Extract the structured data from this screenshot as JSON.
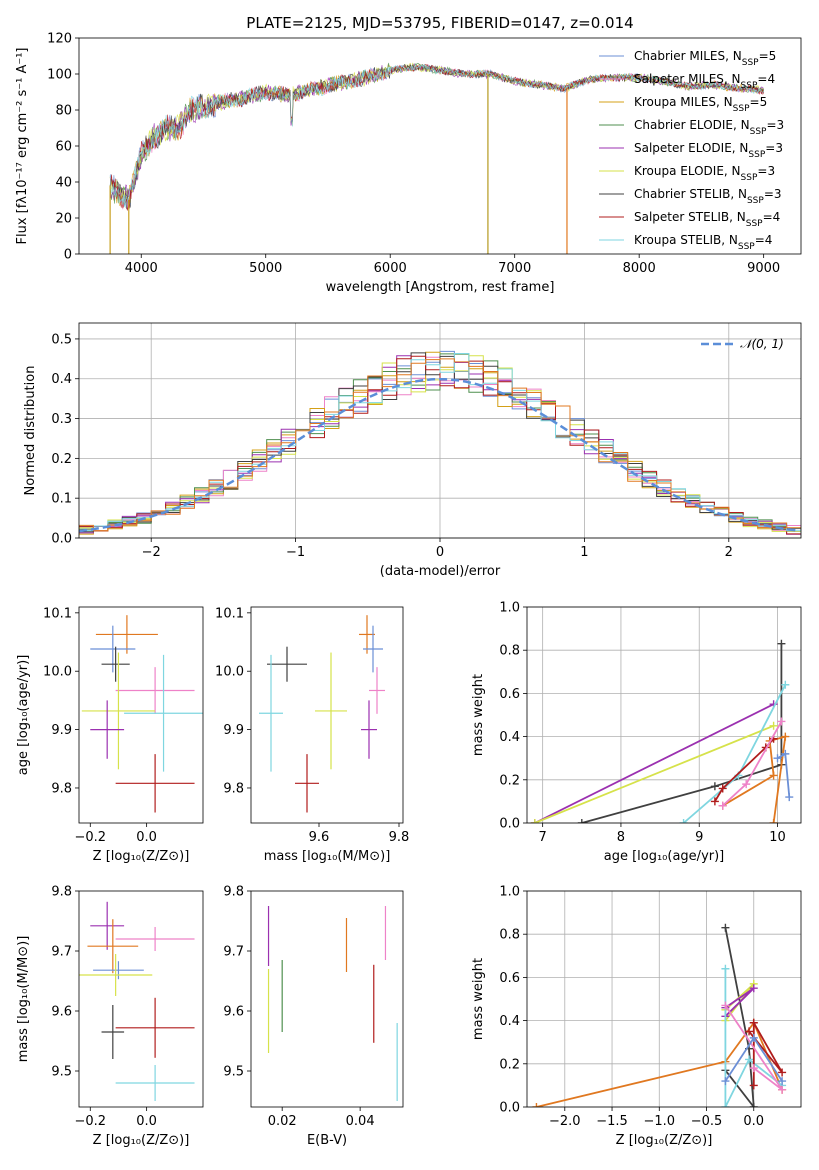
{
  "title": "PLATE=2125, MJD=53795, FIBERID=0147, z=0.014",
  "colors": {
    "Chabrier MILES": "#6b8fd6",
    "Salpeter MILES": "#ee82c8",
    "Kroupa MILES": "#d4a017",
    "Chabrier ELODIE": "#4f8f4f",
    "Salpeter ELODIE": "#9b30b0",
    "Kroupa ELODIE": "#d6e24a",
    "Chabrier STELIB": "#404040",
    "Salpeter STELIB": "#b01c1c",
    "Kroupa STELIB": "#7fd6e0",
    "orange": "#e07820",
    "normal": "#5b8ed8"
  },
  "chart_data": [
    {
      "type": "line",
      "xlabel": "wavelength [Angstrom, rest frame]",
      "ylabel": "Flux [fλ10⁻¹⁷ erg cm⁻² s⁻¹ A⁻¹]",
      "xlim": [
        3500,
        9300
      ],
      "ylim": [
        0,
        120
      ],
      "xticks": [
        4000,
        5000,
        6000,
        7000,
        8000,
        9000
      ],
      "yticks": [
        0,
        20,
        40,
        60,
        80,
        100,
        120
      ],
      "legend_position": "top-right",
      "legend": [
        {
          "label": "Chabrier MILES, N",
          "sub": "SSP",
          "tail": "=5"
        },
        {
          "label": "Salpeter MILES, N",
          "sub": "SSP",
          "tail": "=4"
        },
        {
          "label": "Kroupa MILES, N",
          "sub": "SSP",
          "tail": "=5"
        },
        {
          "label": "Chabrier ELODIE, N",
          "sub": "SSP",
          "tail": "=3"
        },
        {
          "label": "Salpeter ELODIE, N",
          "sub": "SSP",
          "tail": "=3"
        },
        {
          "label": "Kroupa ELODIE, N",
          "sub": "SSP",
          "tail": "=3"
        },
        {
          "label": "Chabrier STELIB, N",
          "sub": "SSP",
          "tail": "=3"
        },
        {
          "label": "Salpeter STELIB, N",
          "sub": "SSP",
          "tail": "=4"
        },
        {
          "label": "Kroupa STELIB, N",
          "sub": "SSP",
          "tail": "=4"
        }
      ],
      "spectrum_anchors": {
        "x": [
          3750,
          3800,
          3900,
          4000,
          4100,
          4200,
          4300,
          4400,
          4500,
          4600,
          4800,
          5000,
          5200,
          5400,
          5600,
          5800,
          5900,
          6000,
          6200,
          6400,
          6600,
          6800,
          7000,
          7200,
          7400,
          7600,
          7800,
          8000,
          8200,
          8400,
          8600,
          8800,
          9000
        ],
        "y": [
          38,
          35,
          30,
          55,
          65,
          70,
          70,
          80,
          82,
          84,
          86,
          90,
          88,
          92,
          95,
          98,
          100,
          102,
          104,
          102,
          100,
          100,
          96,
          94,
          92,
          97,
          98,
          98,
          96,
          93,
          94,
          92,
          91
        ]
      },
      "dips": [
        {
          "x": 3750,
          "to": 0
        },
        {
          "x": 3900,
          "to": 0
        },
        {
          "x": 6785,
          "to": 0
        },
        {
          "x": 7420,
          "to": 0
        }
      ]
    },
    {
      "type": "line",
      "xlabel": "(data-model)/error",
      "ylabel": "Normed distribution",
      "xlim": [
        -2.5,
        2.5
      ],
      "ylim": [
        0,
        0.54
      ],
      "xticks": [
        -2,
        -1,
        0,
        1,
        2
      ],
      "yticks": [
        0.0,
        0.1,
        0.2,
        0.3,
        0.4,
        0.5
      ],
      "grid": true,
      "legend_position": "top-right",
      "legend_label": "𝒩(0, 1)",
      "bin_width": 0.1,
      "series": [
        {
          "name": "Chabrier MILES",
          "seed": 1
        },
        {
          "name": "Salpeter MILES",
          "seed": 2
        },
        {
          "name": "Kroupa MILES",
          "seed": 3
        },
        {
          "name": "Chabrier ELODIE",
          "seed": 4
        },
        {
          "name": "Salpeter ELODIE",
          "seed": 5
        },
        {
          "name": "Kroupa ELODIE",
          "seed": 6
        },
        {
          "name": "Chabrier STELIB",
          "seed": 7
        },
        {
          "name": "Salpeter STELIB",
          "seed": 8
        },
        {
          "name": "Kroupa STELIB",
          "seed": 9
        },
        {
          "name": "orange",
          "seed": 10
        }
      ]
    },
    {
      "type": "scatter",
      "xlabel": "Z [log₁₀(Z/Z⊙)]",
      "ylabel": "age  [log₁₀(age/yr)]",
      "xlim": [
        -0.24,
        0.2
      ],
      "ylim": [
        9.74,
        10.11
      ],
      "xticks": [
        -0.2,
        0.0
      ],
      "xtick_labels": [
        "−0.2",
        "0.0"
      ],
      "yticks": [
        9.8,
        9.9,
        10.0,
        10.1
      ],
      "errorbars": [
        {
          "c": "orange",
          "x": -0.07,
          "xerr": 0.11,
          "y": 10.063,
          "yerr": 0.033
        },
        {
          "c": "Chabrier MILES",
          "x": -0.12,
          "xerr": 0.08,
          "y": 10.038,
          "yerr": 0.04
        },
        {
          "c": "Chabrier STELIB",
          "x": -0.11,
          "xerr": 0.05,
          "y": 10.012,
          "yerr": 0.03
        },
        {
          "c": "Salpeter MILES",
          "x": 0.03,
          "xerr": 0.14,
          "y": 9.967,
          "yerr": 0.04
        },
        {
          "c": "Kroupa ELODIE",
          "x": -0.1,
          "xerr": 0.13,
          "y": 9.932,
          "yerr": 0.1
        },
        {
          "c": "Kroupa STELIB",
          "x": 0.06,
          "xerr": 0.14,
          "y": 9.928,
          "yerr": 0.1
        },
        {
          "c": "Salpeter ELODIE",
          "x": -0.14,
          "xerr": 0.06,
          "y": 9.9,
          "yerr": 0.05
        },
        {
          "c": "Salpeter STELIB",
          "x": 0.03,
          "xerr": 0.14,
          "y": 9.808,
          "yerr": 0.05
        }
      ]
    },
    {
      "type": "scatter",
      "xlabel": "mass [log₁₀(M/M⊙)]",
      "xlim": [
        9.43,
        9.81
      ],
      "ylim": [
        9.74,
        10.11
      ],
      "xticks": [
        9.6,
        9.8
      ],
      "yticks": [
        9.8,
        9.9,
        10.0,
        10.1
      ],
      "errorbars": [
        {
          "c": "orange",
          "x": 9.72,
          "xerr": 0.02,
          "y": 10.063,
          "yerr": 0.033
        },
        {
          "c": "Chabrier MILES",
          "x": 9.735,
          "xerr": 0.025,
          "y": 10.038,
          "yerr": 0.04
        },
        {
          "c": "Chabrier STELIB",
          "x": 9.52,
          "xerr": 0.05,
          "y": 10.012,
          "yerr": 0.03
        },
        {
          "c": "Salpeter MILES",
          "x": 9.745,
          "xerr": 0.02,
          "y": 9.967,
          "yerr": 0.04
        },
        {
          "c": "Kroupa ELODIE",
          "x": 9.63,
          "xerr": 0.04,
          "y": 9.932,
          "yerr": 0.1
        },
        {
          "c": "Kroupa STELIB",
          "x": 9.48,
          "xerr": 0.03,
          "y": 9.928,
          "yerr": 0.1
        },
        {
          "c": "Salpeter ELODIE",
          "x": 9.725,
          "xerr": 0.02,
          "y": 9.9,
          "yerr": 0.05
        },
        {
          "c": "Salpeter STELIB",
          "x": 9.57,
          "xerr": 0.03,
          "y": 9.808,
          "yerr": 0.05
        }
      ]
    },
    {
      "type": "line",
      "xlabel": "age  [log₁₀(age/yr)]",
      "ylabel": "mass weight",
      "xlim": [
        6.8,
        10.3
      ],
      "ylim": [
        0,
        1
      ],
      "xticks": [
        7,
        8,
        9,
        10
      ],
      "yticks": [
        0.0,
        0.2,
        0.4,
        0.6,
        0.8,
        1.0
      ],
      "grid": true,
      "series": [
        {
          "c": "Chabrier STELIB",
          "x": [
            7.5,
            9.2,
            10.05,
            10.05
          ],
          "y": [
            0.0,
            0.17,
            0.27,
            0.83
          ]
        },
        {
          "c": "Salpeter ELODIE",
          "x": [
            6.9,
            9.95
          ],
          "y": [
            0.0,
            0.55
          ]
        },
        {
          "c": "Kroupa ELODIE",
          "x": [
            6.9,
            9.95
          ],
          "y": [
            0.0,
            0.45
          ]
        },
        {
          "c": "Kroupa STELIB",
          "x": [
            8.8,
            9.5,
            10.1
          ],
          "y": [
            0.0,
            0.22,
            0.64
          ]
        },
        {
          "c": "orange",
          "x": [
            9.3,
            9.95,
            9.9,
            10.1,
            9.95
          ],
          "y": [
            0.08,
            0.22,
            0.38,
            0.4,
            0.0
          ]
        },
        {
          "c": "Salpeter STELIB",
          "x": [
            9.2,
            9.3,
            9.85,
            9.95
          ],
          "y": [
            0.1,
            0.16,
            0.35,
            0.39
          ]
        },
        {
          "c": "Salpeter MILES",
          "x": [
            9.3,
            9.6,
            10.05
          ],
          "y": [
            0.08,
            0.18,
            0.47
          ]
        },
        {
          "c": "Chabrier MILES",
          "x": [
            10.0,
            10.1,
            10.15
          ],
          "y": [
            0.3,
            0.32,
            0.12
          ]
        }
      ]
    },
    {
      "type": "scatter",
      "xlabel": "Z [log₁₀(Z/Z⊙)]",
      "ylabel": "mass [log₁₀(M/M⊙)]",
      "xlim": [
        -0.24,
        0.2
      ],
      "ylim": [
        9.44,
        9.8
      ],
      "xticks": [
        -0.2,
        0.0
      ],
      "xtick_labels": [
        "−0.2",
        "0.0"
      ],
      "yticks": [
        9.5,
        9.6,
        9.7,
        9.8
      ],
      "errorbars": [
        {
          "c": "Salpeter ELODIE",
          "x": -0.14,
          "xerr": 0.06,
          "y": 9.742,
          "yerr": 0.04
        },
        {
          "c": "Salpeter MILES",
          "x": 0.03,
          "xerr": 0.14,
          "y": 9.72,
          "yerr": 0.02
        },
        {
          "c": "orange",
          "x": -0.12,
          "xerr": 0.09,
          "y": 9.708,
          "yerr": 0.045
        },
        {
          "c": "Chabrier MILES",
          "x": -0.1,
          "xerr": 0.09,
          "y": 9.668,
          "yerr": 0.015
        },
        {
          "c": "Kroupa ELODIE",
          "x": -0.11,
          "xerr": 0.13,
          "y": 9.66,
          "yerr": 0.035
        },
        {
          "c": "Chabrier STELIB",
          "x": -0.12,
          "xerr": 0.04,
          "y": 9.565,
          "yerr": 0.045
        },
        {
          "c": "Salpeter STELIB",
          "x": 0.03,
          "xerr": 0.14,
          "y": 9.572,
          "yerr": 0.05
        },
        {
          "c": "Kroupa STELIB",
          "x": 0.03,
          "xerr": 0.14,
          "y": 9.48,
          "yerr": 0.03
        }
      ]
    },
    {
      "type": "scatter",
      "xlabel": "E(B-V)",
      "xlim": [
        0.012,
        0.051
      ],
      "ylim": [
        9.44,
        9.8
      ],
      "xticks": [
        0.02,
        0.04
      ],
      "yticks": [
        9.5,
        9.6,
        9.7,
        9.8
      ],
      "errorbars": [
        {
          "c": "Salpeter ELODIE",
          "x": 0.0165,
          "xerr": 0,
          "y": 9.725,
          "yerr": 0.05
        },
        {
          "c": "Kroupa ELODIE",
          "x": 0.0165,
          "xerr": 0,
          "y": 9.6,
          "yerr": 0.07
        },
        {
          "c": "Chabrier ELODIE",
          "x": 0.02,
          "xerr": 0,
          "y": 9.625,
          "yerr": 0.06
        },
        {
          "c": "orange",
          "x": 0.0365,
          "xerr": 0,
          "y": 9.71,
          "yerr": 0.045
        },
        {
          "c": "Salpeter STELIB",
          "x": 0.0435,
          "xerr": 0,
          "y": 9.612,
          "yerr": 0.065
        },
        {
          "c": "Salpeter MILES",
          "x": 0.0465,
          "xerr": 0,
          "y": 9.73,
          "yerr": 0.045
        },
        {
          "c": "Kroupa STELIB",
          "x": 0.0495,
          "xerr": 0,
          "y": 9.515,
          "yerr": 0.065
        }
      ]
    },
    {
      "type": "line",
      "xlabel": "Z [log₁₀(Z/Z⊙)]",
      "ylabel": "mass weight",
      "xlim": [
        -2.4,
        0.5
      ],
      "ylim": [
        0,
        1
      ],
      "xticks": [
        -2.0,
        -1.5,
        -1.0,
        -0.5,
        0.0
      ],
      "xtick_labels": [
        "−2.0",
        "−1.5",
        "−1.0",
        "−0.5",
        "0.0"
      ],
      "yticks": [
        0.0,
        0.2,
        0.4,
        0.6,
        0.8,
        1.0
      ],
      "grid": true,
      "series": [
        {
          "c": "orange",
          "x": [
            -2.3,
            -0.3,
            0.0,
            0.3
          ],
          "y": [
            0.0,
            0.21,
            0.39,
            0.08
          ]
        },
        {
          "c": "Chabrier STELIB",
          "x": [
            -0.3,
            -0.05,
            0.0,
            -0.3
          ],
          "y": [
            0.83,
            0.27,
            0.0,
            0.17
          ]
        },
        {
          "c": "Kroupa ELODIE",
          "x": [
            -0.3,
            0.0,
            -0.3
          ],
          "y": [
            0.45,
            0.57,
            0.4
          ]
        },
        {
          "c": "Salpeter ELODIE",
          "x": [
            -0.3,
            0.0,
            -0.3
          ],
          "y": [
            0.46,
            0.55,
            0.42
          ]
        },
        {
          "c": "Kroupa STELIB",
          "x": [
            -0.3,
            -0.3,
            -0.05,
            0.3
          ],
          "y": [
            0.64,
            0.0,
            0.22,
            0.1
          ]
        },
        {
          "c": "Salpeter STELIB",
          "x": [
            0.0,
            0.0,
            0.3,
            -0.05
          ],
          "y": [
            0.1,
            0.39,
            0.16,
            0.35
          ]
        },
        {
          "c": "Salpeter MILES",
          "x": [
            -0.3,
            0.3,
            0.0
          ],
          "y": [
            0.47,
            0.08,
            0.18
          ]
        },
        {
          "c": "Chabrier MILES",
          "x": [
            -0.3,
            0.0,
            0.3
          ],
          "y": [
            0.12,
            0.32,
            0.12
          ]
        }
      ]
    }
  ]
}
